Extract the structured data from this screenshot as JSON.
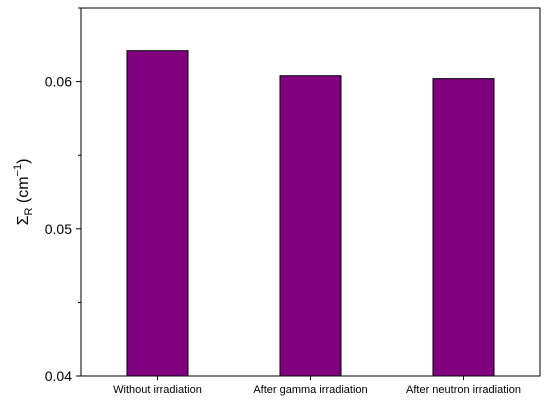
{
  "chart_data": {
    "type": "bar",
    "categories": [
      "Without irradiation",
      "After gamma irradiation",
      "After neutron irradiation"
    ],
    "values": [
      0.0621,
      0.0604,
      0.0602
    ],
    "title": "",
    "xlabel": "",
    "ylabel": {
      "symbol": "Σ",
      "subscript": "R",
      "unit_open": " (cm",
      "unit_sup": "−1",
      "unit_close": ")"
    },
    "ylim": [
      0.04,
      0.065
    ],
    "yticks": [
      {
        "value": 0.04,
        "label": "0.04"
      },
      {
        "value": 0.05,
        "label": "0.05"
      },
      {
        "value": 0.06,
        "label": "0.06"
      }
    ],
    "grid": false,
    "legend": "none",
    "bar_color": "#800080",
    "bar_edge_color": "#000000"
  }
}
